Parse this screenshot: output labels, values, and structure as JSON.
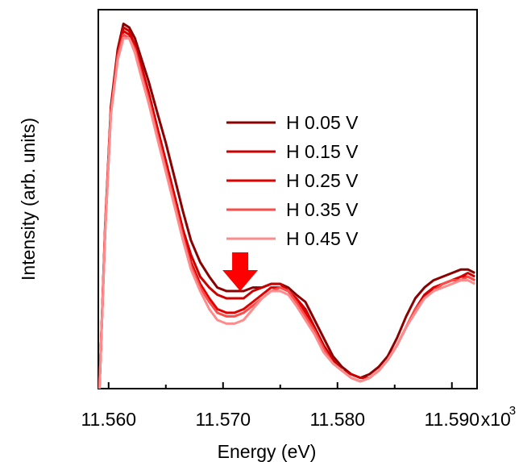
{
  "chart_data": {
    "type": "line",
    "title": "",
    "xlabel": "Energy (eV)",
    "ylabel": "Intensity (arb. units)",
    "x_multiplier_label": "x10",
    "x_multiplier_exponent": "3",
    "xlim": [
      11.5591,
      11.5922
    ],
    "ylim": [
      0,
      1.0
    ],
    "x_tick_values": [
      11.56,
      11.57,
      11.58,
      11.59
    ],
    "x_tick_labels": [
      "11.560",
      "11.570",
      "11.580",
      "11.590"
    ],
    "y_ticks_shown": false,
    "grid": false,
    "legend_position": "center-right",
    "annotation": {
      "type": "arrow-down",
      "x": 11.5715,
      "y": 0.27,
      "color": "#ff0000"
    },
    "x": [
      11.5592,
      11.5597,
      11.5602,
      11.5608,
      11.5613,
      11.5618,
      11.5623,
      11.5628,
      11.5635,
      11.5642,
      11.565,
      11.5658,
      11.5665,
      11.5672,
      11.568,
      11.5688,
      11.5695,
      11.5703,
      11.571,
      11.5718,
      11.5726,
      11.5734,
      11.5742,
      11.575,
      11.5757,
      11.5764,
      11.5772,
      11.578,
      11.5788,
      11.5796,
      11.5804,
      11.5812,
      11.582,
      11.5828,
      11.5836,
      11.5844,
      11.5852,
      11.586,
      11.5868,
      11.5876,
      11.5884,
      11.5892,
      11.59,
      11.5908,
      11.5914,
      11.592
    ],
    "series": [
      {
        "name": "H 0.05 V",
        "color": "#8b0000",
        "values": [
          0.0,
          0.45,
          0.78,
          0.94,
          1.01,
          1.0,
          0.97,
          0.92,
          0.85,
          0.77,
          0.68,
          0.58,
          0.49,
          0.41,
          0.35,
          0.31,
          0.28,
          0.27,
          0.27,
          0.27,
          0.28,
          0.28,
          0.29,
          0.29,
          0.28,
          0.26,
          0.24,
          0.19,
          0.14,
          0.09,
          0.06,
          0.04,
          0.03,
          0.04,
          0.06,
          0.09,
          0.14,
          0.2,
          0.25,
          0.28,
          0.3,
          0.31,
          0.32,
          0.33,
          0.33,
          0.32
        ]
      },
      {
        "name": "H 0.15 V",
        "color": "#cc0000",
        "values": [
          0.0,
          0.44,
          0.77,
          0.93,
          1.0,
          0.99,
          0.95,
          0.9,
          0.82,
          0.73,
          0.63,
          0.53,
          0.44,
          0.37,
          0.31,
          0.28,
          0.26,
          0.25,
          0.25,
          0.25,
          0.27,
          0.28,
          0.29,
          0.29,
          0.27,
          0.25,
          0.22,
          0.17,
          0.12,
          0.08,
          0.05,
          0.04,
          0.03,
          0.03,
          0.05,
          0.08,
          0.12,
          0.17,
          0.22,
          0.26,
          0.28,
          0.29,
          0.3,
          0.31,
          0.32,
          0.31
        ]
      },
      {
        "name": "H 0.25 V",
        "color": "#e00000",
        "values": [
          0.0,
          0.44,
          0.77,
          0.93,
          0.99,
          0.98,
          0.95,
          0.89,
          0.81,
          0.72,
          0.62,
          0.52,
          0.43,
          0.35,
          0.29,
          0.25,
          0.22,
          0.21,
          0.21,
          0.22,
          0.24,
          0.26,
          0.28,
          0.28,
          0.27,
          0.25,
          0.21,
          0.16,
          0.11,
          0.07,
          0.05,
          0.03,
          0.02,
          0.03,
          0.05,
          0.08,
          0.12,
          0.17,
          0.22,
          0.25,
          0.28,
          0.29,
          0.3,
          0.31,
          0.31,
          0.3
        ]
      },
      {
        "name": "H 0.35 V",
        "color": "#ff4a4a",
        "values": [
          0.0,
          0.44,
          0.76,
          0.92,
          0.98,
          0.97,
          0.94,
          0.88,
          0.8,
          0.71,
          0.61,
          0.51,
          0.42,
          0.34,
          0.28,
          0.24,
          0.21,
          0.2,
          0.2,
          0.21,
          0.23,
          0.25,
          0.27,
          0.28,
          0.27,
          0.24,
          0.2,
          0.16,
          0.11,
          0.07,
          0.05,
          0.03,
          0.02,
          0.03,
          0.05,
          0.08,
          0.12,
          0.17,
          0.22,
          0.25,
          0.27,
          0.29,
          0.3,
          0.3,
          0.31,
          0.3
        ]
      },
      {
        "name": "H 0.45 V",
        "color": "#ff8c8c",
        "values": [
          0.0,
          0.43,
          0.76,
          0.91,
          0.97,
          0.97,
          0.93,
          0.87,
          0.79,
          0.7,
          0.6,
          0.5,
          0.41,
          0.33,
          0.27,
          0.22,
          0.19,
          0.18,
          0.18,
          0.19,
          0.22,
          0.25,
          0.27,
          0.27,
          0.26,
          0.23,
          0.19,
          0.15,
          0.1,
          0.07,
          0.05,
          0.03,
          0.02,
          0.03,
          0.05,
          0.08,
          0.12,
          0.17,
          0.21,
          0.25,
          0.27,
          0.28,
          0.29,
          0.3,
          0.3,
          0.29
        ]
      }
    ]
  }
}
